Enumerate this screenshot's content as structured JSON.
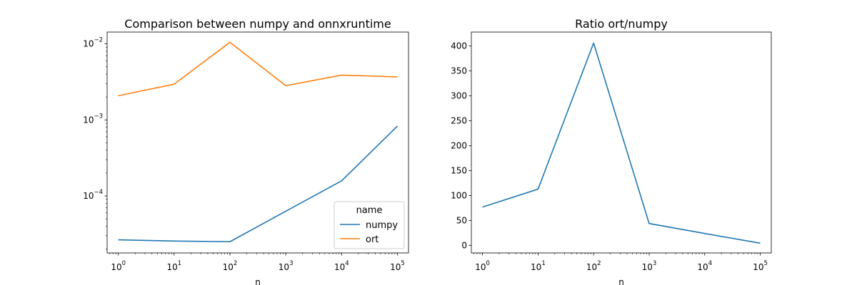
{
  "chart_data": [
    {
      "type": "line",
      "title": "Comparison between numpy and onnxruntime",
      "xlabel": "n",
      "ylabel": "",
      "xscale": "log",
      "yscale": "log",
      "x": [
        1,
        10,
        100,
        1000,
        10000,
        100000
      ],
      "x_tick_labels": [
        {
          "base": "10",
          "exp": "0"
        },
        {
          "base": "10",
          "exp": "1"
        },
        {
          "base": "10",
          "exp": "2"
        },
        {
          "base": "10",
          "exp": "3"
        },
        {
          "base": "10",
          "exp": "4"
        },
        {
          "base": "10",
          "exp": "5"
        }
      ],
      "y_tick_labels": [
        {
          "base": "10",
          "exp": "−4",
          "value": 0.0001
        },
        {
          "base": "10",
          "exp": "−3",
          "value": 0.001
        },
        {
          "base": "10",
          "exp": "−2",
          "value": 0.01
        }
      ],
      "xlim": [
        0.63,
        158000
      ],
      "ylim": [
        1.78e-05,
        0.0143
      ],
      "legend": {
        "title": "name",
        "placement": "bottom-right"
      },
      "grid": false,
      "series": [
        {
          "name": "numpy",
          "color": "#1f77b4",
          "values": [
            2.65e-05,
            2.55e-05,
            2.5e-05,
            6.3e-05,
            0.000158,
            0.00083
          ]
        },
        {
          "name": "ort",
          "color": "#ff7f0e",
          "values": [
            0.00208,
            0.00295,
            0.0105,
            0.00282,
            0.00388,
            0.00368
          ]
        }
      ]
    },
    {
      "type": "line",
      "title": "Ratio ort/numpy",
      "xlabel": "n",
      "ylabel": "",
      "xscale": "log",
      "yscale": "linear",
      "x": [
        1,
        10,
        100,
        1000,
        10000,
        100000
      ],
      "x_tick_labels": [
        {
          "base": "10",
          "exp": "0"
        },
        {
          "base": "10",
          "exp": "1"
        },
        {
          "base": "10",
          "exp": "2"
        },
        {
          "base": "10",
          "exp": "3"
        },
        {
          "base": "10",
          "exp": "4"
        },
        {
          "base": "10",
          "exp": "5"
        }
      ],
      "y_ticks": [
        0,
        50,
        100,
        150,
        200,
        250,
        300,
        350,
        400
      ],
      "xlim": [
        0.63,
        158000
      ],
      "ylim": [
        -15,
        428
      ],
      "grid": false,
      "series": [
        {
          "color": "#1f77b4",
          "values": [
            77,
            113,
            406,
            44,
            24,
            4.5
          ]
        }
      ]
    }
  ]
}
